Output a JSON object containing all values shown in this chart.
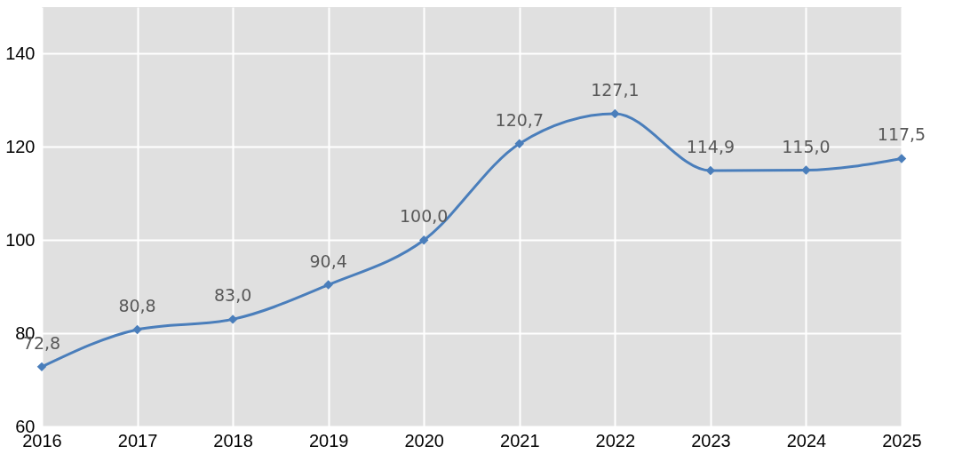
{
  "chart_data": {
    "type": "line",
    "x": [
      2016,
      2017,
      2018,
      2019,
      2020,
      2021,
      2022,
      2023,
      2024,
      2025
    ],
    "series": [
      {
        "color": "#4a7ebb",
        "values": [
          72.8,
          80.8,
          83.0,
          90.4,
          100.0,
          120.7,
          127.1,
          114.9,
          115.0,
          117.5
        ],
        "value_labels": [
          "72,8",
          "80,8",
          "83,0",
          "90,4",
          "100,0",
          "120,7",
          "127,1",
          "114,9",
          "115,0",
          "117,5"
        ]
      }
    ],
    "xlim": [
      2016,
      2025
    ],
    "xticks": [
      2016,
      2017,
      2018,
      2019,
      2020,
      2021,
      2022,
      2023,
      2024,
      2025
    ],
    "ylim": [
      60,
      150
    ],
    "yticks": [
      60,
      80,
      100,
      120,
      140
    ],
    "grid": true,
    "marker": "diamond",
    "line_style": "solid"
  }
}
